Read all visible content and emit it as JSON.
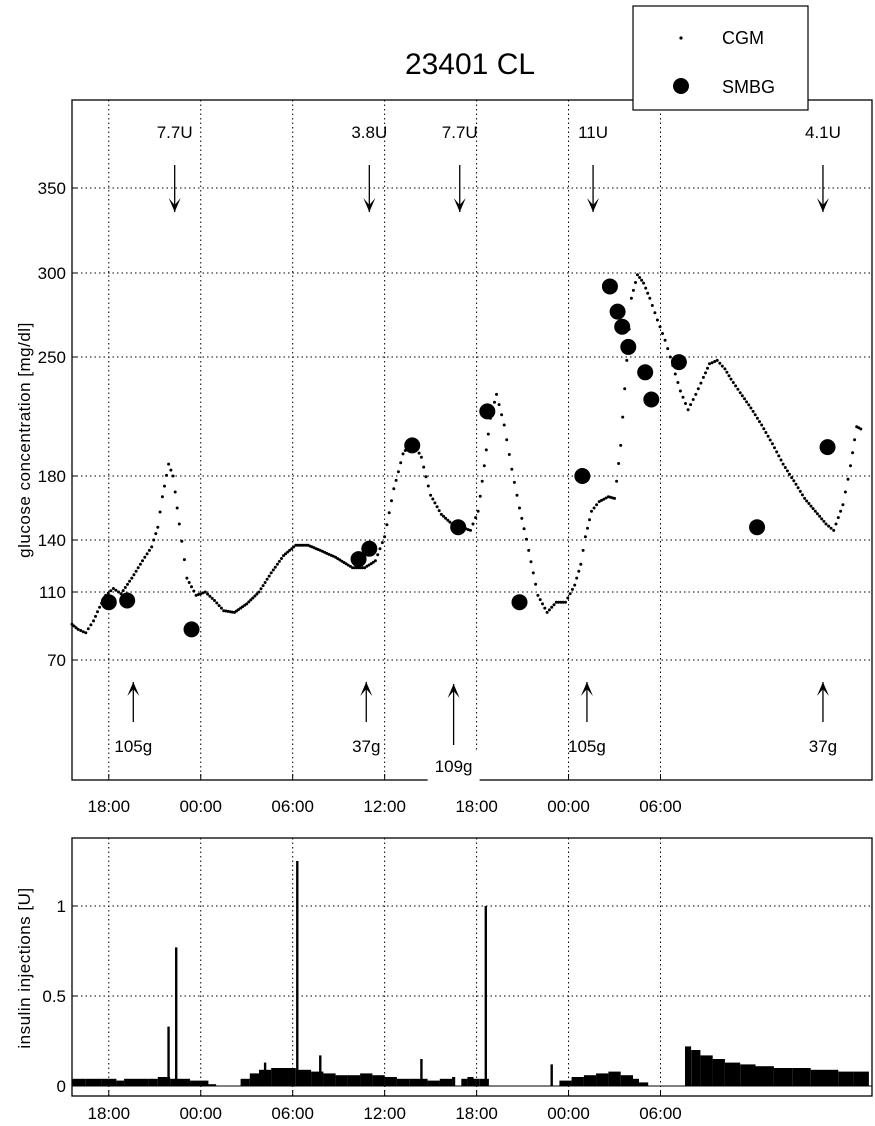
{
  "chart_data": [
    {
      "type": "scatter",
      "title": "23401 CL",
      "ylabel": "glucose concentration [mg/dl]",
      "xlabel": "",
      "ylim": [
        35,
        400
      ],
      "y_ticks": [
        70,
        110,
        140,
        180,
        250,
        300,
        350
      ],
      "x_tick_labels": [
        "18:00",
        "00:00",
        "06:00",
        "12:00",
        "18:00",
        "00:00",
        "06:00"
      ],
      "x_tick_hours": [
        0,
        6,
        12,
        18,
        24,
        30,
        36
      ],
      "xlim_hours": [
        -2.4,
        40.2
      ],
      "grid": true,
      "legend": {
        "position": "top-right",
        "entries": [
          "CGM",
          "SMBG"
        ]
      },
      "series": [
        {
          "name": "CGM",
          "marker": "dot",
          "points": [
            [
              -2.4,
              91
            ],
            [
              -2.0,
              88
            ],
            [
              -1.5,
              86
            ],
            [
              -1.0,
              93
            ],
            [
              -0.6,
              101
            ],
            [
              -0.2,
              108
            ],
            [
              0.3,
              112
            ],
            [
              0.8,
              109
            ],
            [
              1.5,
              118
            ],
            [
              2.2,
              128
            ],
            [
              2.8,
              136
            ],
            [
              3.2,
              148
            ],
            [
              3.5,
              167
            ],
            [
              3.9,
              187
            ],
            [
              4.2,
              180
            ],
            [
              4.6,
              150
            ],
            [
              5.1,
              118
            ],
            [
              5.7,
              108
            ],
            [
              6.3,
              110
            ],
            [
              6.9,
              105
            ],
            [
              7.5,
              99
            ],
            [
              8.2,
              98
            ],
            [
              9.0,
              103
            ],
            [
              9.8,
              110
            ],
            [
              10.6,
              121
            ],
            [
              11.4,
              131
            ],
            [
              12.2,
              137
            ],
            [
              13.0,
              137
            ],
            [
              13.8,
              134
            ],
            [
              14.8,
              130
            ],
            [
              15.9,
              124
            ],
            [
              16.7,
              124
            ],
            [
              17.4,
              128
            ],
            [
              18.0,
              142
            ],
            [
              18.6,
              172
            ],
            [
              19.2,
              193
            ],
            [
              19.8,
              201
            ],
            [
              20.4,
              191
            ],
            [
              21.0,
              168
            ],
            [
              21.7,
              156
            ],
            [
              22.4,
              150
            ],
            [
              23.0,
              148
            ],
            [
              23.6,
              146
            ],
            [
              24.1,
              158
            ],
            [
              24.5,
              186
            ],
            [
              24.9,
              214
            ],
            [
              25.3,
              228
            ],
            [
              25.8,
              210
            ],
            [
              26.3,
              184
            ],
            [
              26.8,
              160
            ],
            [
              27.4,
              134
            ],
            [
              28.0,
              108
            ],
            [
              28.6,
              98
            ],
            [
              29.2,
              104
            ],
            [
              29.8,
              104
            ],
            [
              30.4,
              114
            ],
            [
              30.8,
              126
            ],
            [
              31.1,
              142
            ],
            [
              31.5,
              158
            ],
            [
              32.0,
              164
            ],
            [
              32.6,
              167
            ],
            [
              33.0,
              166
            ],
            [
              33.4,
              198
            ],
            [
              33.8,
              248
            ],
            [
              34.1,
              285
            ],
            [
              34.5,
              299
            ],
            [
              34.9,
              294
            ],
            [
              35.3,
              285
            ],
            [
              35.8,
              272
            ],
            [
              36.3,
              260
            ],
            [
              36.8,
              245
            ],
            [
              37.3,
              230
            ],
            [
              37.8,
              219
            ],
            [
              38.3,
              228
            ],
            [
              38.8,
              238
            ],
            [
              39.2,
              246
            ],
            [
              39.7,
              248
            ],
            [
              40.2,
              243
            ]
          ],
          "points_extra": [
            [
              40.6,
              237
            ],
            [
              41.2,
              229
            ],
            [
              41.9,
              220
            ],
            [
              42.6,
              210
            ],
            [
              43.3,
              199
            ],
            [
              44.0,
              187
            ],
            [
              44.7,
              177
            ],
            [
              45.4,
              166
            ],
            [
              46.1,
              158
            ],
            [
              46.8,
              150
            ],
            [
              47.3,
              146
            ],
            [
              47.9,
              162
            ],
            [
              48.4,
              186
            ],
            [
              48.8,
              209
            ],
            [
              49.2,
              207
            ]
          ]
        },
        {
          "name": "SMBG",
          "marker": "filled-circle",
          "points": [
            [
              0.0,
              104
            ],
            [
              1.2,
              105
            ],
            [
              5.4,
              88
            ],
            [
              16.3,
              129
            ],
            [
              17.0,
              135
            ],
            [
              19.8,
              198
            ],
            [
              22.8,
              148
            ],
            [
              24.7,
              218
            ],
            [
              26.8,
              104
            ],
            [
              30.9,
              180
            ],
            [
              32.7,
              292
            ],
            [
              33.2,
              277
            ],
            [
              33.5,
              268
            ],
            [
              33.9,
              256
            ],
            [
              35.0,
              241
            ],
            [
              35.4,
              225
            ],
            [
              37.2,
              247
            ],
            [
              42.3,
              148
            ],
            [
              46.9,
              197
            ]
          ]
        }
      ],
      "annotations_top": [
        {
          "label": "7.7U",
          "hour": 4.3
        },
        {
          "label": "3.8U",
          "hour": 17.0
        },
        {
          "label": "7.7U",
          "hour": 22.9
        },
        {
          "label": "11U",
          "hour": 31.6
        },
        {
          "label": "4.1U",
          "hour": 46.6
        }
      ],
      "annotations_bottom": [
        {
          "label": "105g",
          "hour": 1.6
        },
        {
          "label": "37g",
          "hour": 16.8
        },
        {
          "label": "109g",
          "hour": 22.5
        },
        {
          "label": "105g",
          "hour": 31.2
        },
        {
          "label": "37g",
          "hour": 46.6
        }
      ]
    },
    {
      "type": "bar",
      "title": "",
      "ylabel": "insulin injections [U]",
      "xlabel": "",
      "ylim": [
        0,
        1.35
      ],
      "y_ticks": [
        0,
        0.5,
        1
      ],
      "y_tick_labels": [
        "0",
        "0.5",
        "1"
      ],
      "x_tick_labels": [
        "18:00",
        "00:00",
        "06:00",
        "12:00",
        "18:00",
        "00:00",
        "06:00"
      ],
      "grid": true,
      "spikes": [
        {
          "hour": 4.4,
          "value": 0.77
        },
        {
          "hour": 3.9,
          "value": 0.33
        },
        {
          "hour": 10.2,
          "value": 0.13
        },
        {
          "hour": 12.3,
          "value": 1.25
        },
        {
          "hour": 13.8,
          "value": 0.17
        },
        {
          "hour": 20.4,
          "value": 0.15
        },
        {
          "hour": 24.6,
          "value": 1.0
        },
        {
          "hour": 28.9,
          "value": 0.12
        }
      ],
      "basal": [
        [
          -2.4,
          0.04
        ],
        [
          -1.5,
          0.04
        ],
        [
          -0.5,
          0.04
        ],
        [
          0.5,
          0.03
        ],
        [
          1.0,
          0.04
        ],
        [
          2.6,
          0.04
        ],
        [
          3.2,
          0.05
        ],
        [
          4.0,
          0.04
        ],
        [
          5.3,
          0.03
        ],
        [
          6.5,
          0.01
        ],
        [
          7.0,
          0.0
        ],
        [
          8.2,
          0.0
        ],
        [
          8.6,
          0.04
        ],
        [
          9.2,
          0.07
        ],
        [
          9.8,
          0.09
        ],
        [
          10.6,
          0.1
        ],
        [
          11.4,
          0.1
        ],
        [
          12.2,
          0.09
        ],
        [
          13.2,
          0.08
        ],
        [
          14.0,
          0.07
        ],
        [
          14.8,
          0.06
        ],
        [
          15.6,
          0.06
        ],
        [
          16.4,
          0.07
        ],
        [
          17.2,
          0.06
        ],
        [
          18.0,
          0.05
        ],
        [
          18.8,
          0.04
        ],
        [
          19.6,
          0.04
        ],
        [
          20.8,
          0.03
        ],
        [
          21.6,
          0.04
        ],
        [
          22.4,
          0.05
        ],
        [
          22.6,
          0.0
        ],
        [
          23.0,
          0.04
        ],
        [
          23.4,
          0.05
        ],
        [
          23.8,
          0.04
        ],
        [
          24.2,
          0.04
        ],
        [
          24.8,
          0.0
        ],
        [
          25.4,
          0.0
        ],
        [
          28.6,
          0.0
        ],
        [
          29.4,
          0.03
        ],
        [
          30.2,
          0.05
        ],
        [
          31.0,
          0.06
        ],
        [
          31.8,
          0.07
        ],
        [
          32.6,
          0.08
        ],
        [
          33.4,
          0.06
        ],
        [
          34.2,
          0.04
        ],
        [
          34.6,
          0.02
        ],
        [
          35.2,
          0.0
        ],
        [
          37.4,
          0.0
        ],
        [
          37.6,
          0.22
        ],
        [
          38.0,
          0.2
        ],
        [
          38.6,
          0.17
        ],
        [
          39.4,
          0.15
        ],
        [
          40.2,
          0.13
        ],
        [
          41.2,
          0.12
        ],
        [
          42.2,
          0.11
        ],
        [
          43.4,
          0.1
        ],
        [
          44.6,
          0.1
        ],
        [
          45.8,
          0.09
        ],
        [
          46.8,
          0.09
        ],
        [
          47.6,
          0.08
        ],
        [
          48.6,
          0.08
        ],
        [
          49.6,
          0.09
        ]
      ]
    }
  ]
}
